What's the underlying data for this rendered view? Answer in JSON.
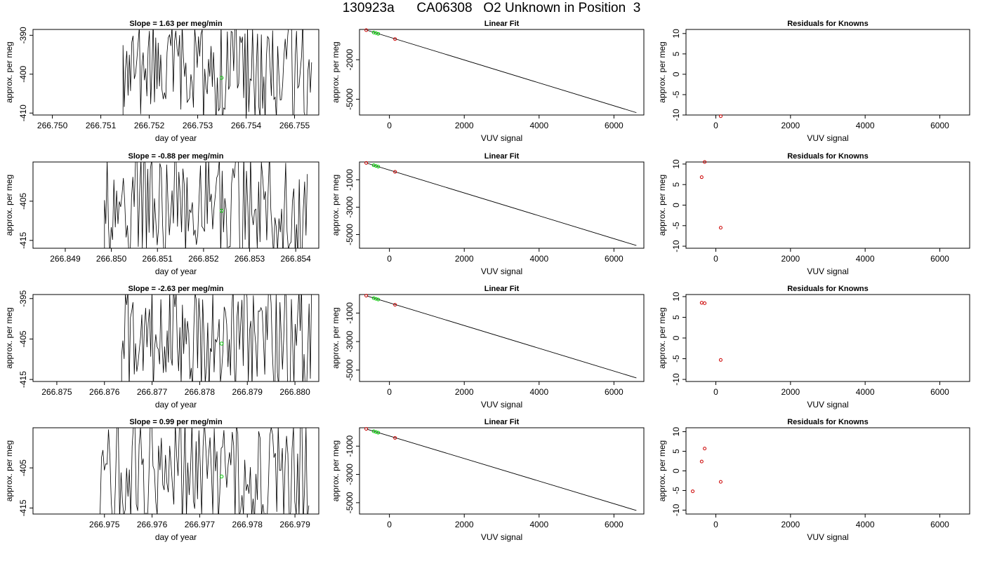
{
  "figure_title": "130923a      CA06308   O2 Unknown in Position  3",
  "colors": {
    "trace": "#000000",
    "unknown_points": "#00cc00",
    "known_points": "#cc0000",
    "frame": "#000000"
  },
  "chart_data": [
    {
      "type": "line",
      "title": "Slope =  1.63  per meg/min",
      "xlabel": "day of year",
      "ylabel": "approx. per meg",
      "x_ticks": [
        "266.750",
        "266.751",
        "266.752",
        "266.753",
        "266.754",
        "266.755"
      ],
      "y_ticks": [
        "-390",
        "-400",
        "-410"
      ],
      "xlim": [
        266.7496,
        266.7555
      ],
      "ylim": [
        -410.5,
        -388.5
      ],
      "grid": false
    },
    {
      "type": "scatter",
      "title": "Linear Fit",
      "xlabel": "VUV signal",
      "ylabel": "approx. per meg",
      "x_ticks": [
        "0",
        "2000",
        "4000",
        "6000"
      ],
      "y_ticks": [
        "-2000",
        "-5000"
      ],
      "xlim": [
        -800,
        6800
      ],
      "ylim": [
        -6200,
        300
      ],
      "fit_line": {
        "x": [
          -600,
          6600
        ],
        "y": [
          240,
          -6020
        ]
      },
      "known_points": {
        "x": [
          -620,
          150
        ],
        "y": [
          245,
          -430
        ]
      },
      "unknown_points": {
        "x": [
          -420,
          -360,
          -300
        ],
        "y": [
          70,
          20,
          -30
        ]
      }
    },
    {
      "type": "scatter",
      "title": "Residuals for Knowns",
      "xlabel": "VUV signal",
      "ylabel": "approx. per meg",
      "x_ticks": [
        "0",
        "2000",
        "4000",
        "6000"
      ],
      "y_ticks": [
        "10",
        "5",
        "0",
        "-5",
        "-10"
      ],
      "xlim": [
        -800,
        6800
      ],
      "ylim": [
        -10,
        11
      ],
      "known_points": {
        "x": [
          130
        ],
        "y": [
          -10.3
        ]
      }
    },
    {
      "type": "line",
      "title": "Slope =  -0.88  per meg/min",
      "xlabel": "day of year",
      "ylabel": "approx. per meg",
      "x_ticks": [
        "266.849",
        "266.850",
        "266.851",
        "266.852",
        "266.853",
        "266.854"
      ],
      "y_ticks": [
        "-405",
        "-415"
      ],
      "xlim": [
        266.8483,
        266.8545
      ],
      "ylim": [
        -417,
        -395
      ],
      "grid": false
    },
    {
      "type": "scatter",
      "title": "Linear Fit",
      "xlabel": "VUV signal",
      "ylabel": "approx. per meg",
      "x_ticks": [
        "0",
        "2000",
        "4000",
        "6000"
      ],
      "y_ticks": [
        "-1000",
        "-3000",
        "-5000"
      ],
      "xlim": [
        -800,
        6800
      ],
      "ylim": [
        -6000,
        300
      ],
      "fit_line": {
        "x": [
          -600,
          6600
        ],
        "y": [
          210,
          -5800
        ]
      },
      "known_points": {
        "x": [
          -620,
          150
        ],
        "y": [
          230,
          -420
        ]
      },
      "unknown_points": {
        "x": [
          -420,
          -360,
          -300
        ],
        "y": [
          60,
          10,
          -40
        ]
      }
    },
    {
      "type": "scatter",
      "title": "Residuals for Knowns",
      "xlabel": "VUV signal",
      "ylabel": "approx. per meg",
      "x_ticks": [
        "0",
        "2000",
        "4000",
        "6000"
      ],
      "y_ticks": [
        "10",
        "5",
        "0",
        "-5",
        "-10"
      ],
      "xlim": [
        -800,
        6800
      ],
      "ylim": [
        -10.5,
        10.5
      ],
      "known_points": {
        "x": [
          -380,
          -300,
          130
        ],
        "y": [
          6.8,
          10.5,
          -5.5
        ]
      }
    },
    {
      "type": "line",
      "title": "Slope =  -2.63  per meg/min",
      "xlabel": "day of year",
      "ylabel": "approx. per meg",
      "x_ticks": [
        "266.875",
        "266.876",
        "266.877",
        "266.878",
        "266.879",
        "266.880"
      ],
      "y_ticks": [
        "-395",
        "-405",
        "-415"
      ],
      "xlim": [
        266.8745,
        266.8805
      ],
      "ylim": [
        -415.5,
        -394
      ],
      "grid": false
    },
    {
      "type": "scatter",
      "title": "Linear Fit",
      "xlabel": "VUV signal",
      "ylabel": "approx. per meg",
      "x_ticks": [
        "0",
        "2000",
        "4000",
        "6000"
      ],
      "y_ticks": [
        "-1000",
        "-3000",
        "-5000"
      ],
      "xlim": [
        -800,
        6800
      ],
      "ylim": [
        -5800,
        300
      ],
      "fit_line": {
        "x": [
          -600,
          6600
        ],
        "y": [
          200,
          -5550
        ]
      },
      "known_points": {
        "x": [
          -620,
          150
        ],
        "y": [
          220,
          -420
        ]
      },
      "unknown_points": {
        "x": [
          -420,
          -360,
          -300
        ],
        "y": [
          50,
          0,
          -50
        ]
      }
    },
    {
      "type": "scatter",
      "title": "Residuals for Knowns",
      "xlabel": "VUV signal",
      "ylabel": "approx. per meg",
      "x_ticks": [
        "0",
        "2000",
        "4000",
        "6000"
      ],
      "y_ticks": [
        "10",
        "5",
        "0",
        "-5",
        "-10"
      ],
      "xlim": [
        -800,
        6800
      ],
      "ylim": [
        -10.5,
        10.5
      ],
      "known_points": {
        "x": [
          -380,
          -300,
          130
        ],
        "y": [
          8.5,
          8.4,
          -5.3
        ]
      }
    },
    {
      "type": "line",
      "title": "Slope =  0.99  per meg/min",
      "xlabel": "day of year",
      "ylabel": "approx. per meg",
      "x_ticks": [
        "266.975",
        "266.976",
        "266.977",
        "266.978",
        "266.979"
      ],
      "y_ticks": [
        "-405",
        "-415"
      ],
      "xlim": [
        266.9735,
        266.9795
      ],
      "ylim": [
        -416.5,
        -395
      ],
      "grid": false
    },
    {
      "type": "scatter",
      "title": "Linear Fit",
      "xlabel": "VUV signal",
      "ylabel": "approx. per meg",
      "x_ticks": [
        "0",
        "2000",
        "4000",
        "6000"
      ],
      "y_ticks": [
        "-1000",
        "-3000",
        "-5000"
      ],
      "xlim": [
        -800,
        6800
      ],
      "ylim": [
        -5800,
        300
      ],
      "fit_line": {
        "x": [
          -600,
          6600
        ],
        "y": [
          200,
          -5550
        ]
      },
      "known_points": {
        "x": [
          -620,
          150
        ],
        "y": [
          220,
          -420
        ]
      },
      "unknown_points": {
        "x": [
          -420,
          -360,
          -300
        ],
        "y": [
          50,
          0,
          -50
        ]
      }
    },
    {
      "type": "scatter",
      "title": "Residuals for Knowns",
      "xlabel": "VUV signal",
      "ylabel": "approx. per meg",
      "x_ticks": [
        "0",
        "2000",
        "4000",
        "6000"
      ],
      "y_ticks": [
        "10",
        "5",
        "0",
        "-5",
        "-10"
      ],
      "xlim": [
        -800,
        6800
      ],
      "ylim": [
        -11,
        11
      ],
      "known_points": {
        "x": [
          -620,
          -380,
          -300,
          130
        ],
        "y": [
          -5.2,
          2.4,
          5.7,
          -2.8
        ]
      }
    }
  ]
}
